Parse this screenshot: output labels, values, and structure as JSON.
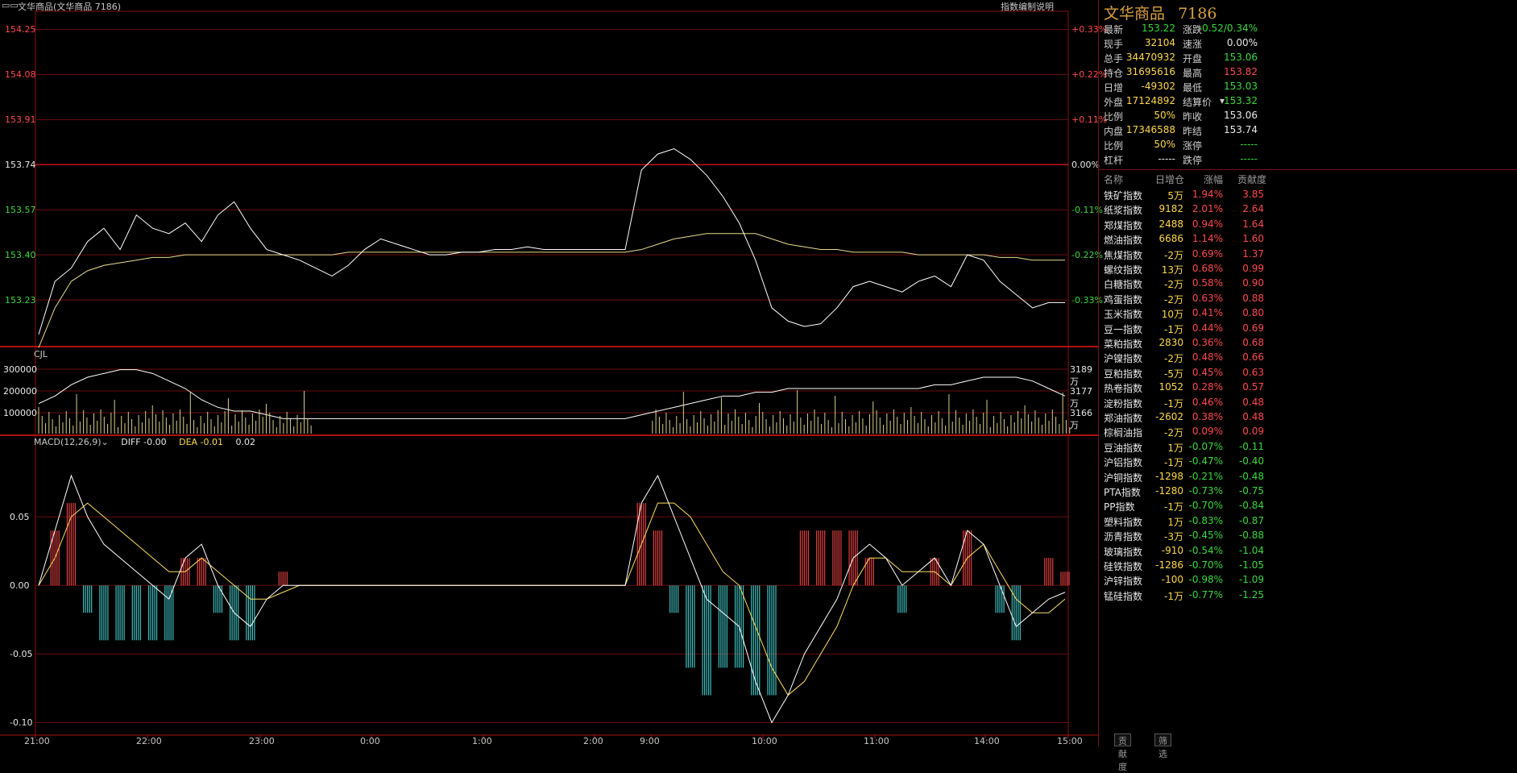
{
  "window": {
    "title": "文华商品(文华商品  7186)",
    "link": "指数编制说明"
  },
  "price_axis": {
    "left_labels": [
      "154.25",
      "154.08",
      "153.91",
      "153.74",
      "153.57",
      "153.40",
      "153.23"
    ],
    "right_labels": [
      "+0.33%",
      "+0.22%",
      "+0.11%",
      "0.00%",
      "-0.11%",
      "-0.22%",
      "-0.33%"
    ]
  },
  "volume_panel": {
    "label": "CJL",
    "left_labels": [
      "300000",
      "200000",
      "100000"
    ],
    "right_labels": [
      "3189万",
      "3177万",
      "3166万"
    ]
  },
  "macd_panel": {
    "label": "MACD(12,26,9)",
    "diff": "DIFF -0.00",
    "dea": "DEA -0.01",
    "macd": "0.02",
    "left_labels": [
      "0.05",
      "0.00",
      "-0.05",
      "-0.10"
    ]
  },
  "time_axis": [
    "21:00",
    "22:00",
    "23:00",
    "0:00",
    "1:00",
    "2:00",
    "9:00",
    "10:00",
    "11:00",
    "14:00",
    "15:00"
  ],
  "quote": {
    "name": "文华商品",
    "code": "7186",
    "rows": [
      {
        "l1": "最新",
        "v1": "153.22",
        "c1": "#3ad83a",
        "l2": "涨跌",
        "v2": "-0.52/0.34%",
        "c2": "#3ad83a"
      },
      {
        "l1": "现手",
        "v1": "32104",
        "c1": "#ffd84a",
        "l2": "速涨",
        "v2": "0.00%",
        "c2": "#e8e8e8"
      },
      {
        "l1": "总手",
        "v1": "34470932",
        "c1": "#ffd84a",
        "l2": "开盘",
        "v2": "153.06",
        "c2": "#3ad83a"
      },
      {
        "l1": "持仓",
        "v1": "31695616",
        "c1": "#ffd84a",
        "l2": "最高",
        "v2": "153.82",
        "c2": "#ff4a4a"
      },
      {
        "l1": "日增",
        "v1": "-49302",
        "c1": "#ffd84a",
        "l2": "最低",
        "v2": "153.03",
        "c2": "#3ad83a"
      },
      {
        "l1": "外盘",
        "v1": "17124892",
        "c1": "#ffd84a",
        "l2": "结算价",
        "v2": "153.32",
        "c2": "#3ad83a"
      },
      {
        "l1": "比例",
        "v1": "50%",
        "c1": "#ffd84a",
        "l2": "昨收",
        "v2": "153.06",
        "c2": "#e8e8e8"
      },
      {
        "l1": "内盘",
        "v1": "17346588",
        "c1": "#ffd84a",
        "l2": "昨结",
        "v2": "153.74",
        "c2": "#e8e8e8"
      },
      {
        "l1": "比例",
        "v1": "50%",
        "c1": "#ffd84a",
        "l2": "涨停",
        "v2": "-----",
        "c2": "#3ad83a"
      },
      {
        "l1": "杠杆",
        "v1": "-----",
        "c1": "#e8e8e8",
        "l2": "跌停",
        "v2": "-----",
        "c2": "#3ad83a"
      }
    ]
  },
  "components": {
    "headers": [
      "名称",
      "日增仓",
      "涨幅",
      "贡献度"
    ],
    "rows": [
      {
        "name": "铁矿指数",
        "oi": "5万",
        "chg": "1.94%",
        "contrib": "3.85",
        "up": true
      },
      {
        "name": "纸浆指数",
        "oi": "9182",
        "chg": "2.01%",
        "contrib": "2.64",
        "up": true
      },
      {
        "name": "郑煤指数",
        "oi": "2488",
        "chg": "0.94%",
        "contrib": "1.64",
        "up": true
      },
      {
        "name": "燃油指数",
        "oi": "6686",
        "chg": "1.14%",
        "contrib": "1.60",
        "up": true
      },
      {
        "name": "焦煤指数",
        "oi": "-2万",
        "chg": "0.69%",
        "contrib": "1.37",
        "up": true
      },
      {
        "name": "螺纹指数",
        "oi": "13万",
        "chg": "0.68%",
        "contrib": "0.99",
        "up": true
      },
      {
        "name": "白糖指数",
        "oi": "-2万",
        "chg": "0.58%",
        "contrib": "0.90",
        "up": true
      },
      {
        "name": "鸡蛋指数",
        "oi": "-2万",
        "chg": "0.63%",
        "contrib": "0.88",
        "up": true
      },
      {
        "name": "玉米指数",
        "oi": "10万",
        "chg": "0.41%",
        "contrib": "0.80",
        "up": true
      },
      {
        "name": "豆一指数",
        "oi": "-1万",
        "chg": "0.44%",
        "contrib": "0.69",
        "up": true
      },
      {
        "name": "菜粕指数",
        "oi": "2830",
        "chg": "0.36%",
        "contrib": "0.68",
        "up": true
      },
      {
        "name": "沪镍指数",
        "oi": "-2万",
        "chg": "0.48%",
        "contrib": "0.66",
        "up": true
      },
      {
        "name": "豆粕指数",
        "oi": "-5万",
        "chg": "0.45%",
        "contrib": "0.63",
        "up": true
      },
      {
        "name": "热卷指数",
        "oi": "1052",
        "chg": "0.28%",
        "contrib": "0.57",
        "up": true
      },
      {
        "name": "淀粉指数",
        "oi": "-1万",
        "chg": "0.46%",
        "contrib": "0.48",
        "up": true
      },
      {
        "name": "郑油指数",
        "oi": "-2602",
        "chg": "0.38%",
        "contrib": "0.48",
        "up": true
      },
      {
        "name": "棕榈油指",
        "oi": "-2万",
        "chg": "0.09%",
        "contrib": "0.09",
        "up": true
      },
      {
        "name": "豆油指数",
        "oi": "1万",
        "chg": "-0.07%",
        "contrib": "-0.11",
        "up": false
      },
      {
        "name": "沪铝指数",
        "oi": "-1万",
        "chg": "-0.47%",
        "contrib": "-0.40",
        "up": false
      },
      {
        "name": "沪铜指数",
        "oi": "-1298",
        "chg": "-0.21%",
        "contrib": "-0.48",
        "up": false
      },
      {
        "name": "PTA指数",
        "oi": "-1280",
        "chg": "-0.73%",
        "contrib": "-0.75",
        "up": false
      },
      {
        "name": "PP指数",
        "oi": "-1万",
        "chg": "-0.70%",
        "contrib": "-0.84",
        "up": false
      },
      {
        "name": "塑料指数",
        "oi": "1万",
        "chg": "-0.83%",
        "contrib": "-0.87",
        "up": false
      },
      {
        "name": "沥青指数",
        "oi": "-3万",
        "chg": "-0.45%",
        "contrib": "-0.88",
        "up": false
      },
      {
        "name": "玻璃指数",
        "oi": "-910",
        "chg": "-0.54%",
        "contrib": "-1.04",
        "up": false
      },
      {
        "name": "硅铁指数",
        "oi": "-1286",
        "chg": "-0.70%",
        "contrib": "-1.05",
        "up": false
      },
      {
        "name": "沪锌指数",
        "oi": "-100",
        "chg": "-0.98%",
        "contrib": "-1.09",
        "up": false
      },
      {
        "name": "锰硅指数",
        "oi": "-1万",
        "chg": "-0.77%",
        "contrib": "-1.25",
        "up": false
      }
    ]
  },
  "bottom_tabs": [
    "贡献度",
    "筛选"
  ],
  "chart_data": {
    "type": "line",
    "price_series": [
      153.1,
      153.3,
      153.35,
      153.45,
      153.5,
      153.42,
      153.55,
      153.5,
      153.48,
      153.52,
      153.45,
      153.55,
      153.6,
      153.5,
      153.42,
      153.4,
      153.38,
      153.35,
      153.32,
      153.36,
      153.42,
      153.46,
      153.44,
      153.42,
      153.4,
      153.4,
      153.41,
      153.41,
      153.42,
      153.42,
      153.43,
      153.42,
      153.42,
      153.42,
      153.42,
      153.42,
      153.42,
      153.72,
      153.78,
      153.8,
      153.76,
      153.7,
      153.62,
      153.52,
      153.38,
      153.2,
      153.15,
      153.13,
      153.14,
      153.2,
      153.28,
      153.3,
      153.28,
      153.26,
      153.3,
      153.32,
      153.28,
      153.4,
      153.38,
      153.3,
      153.25,
      153.2,
      153.22,
      153.22
    ],
    "avg_series": [
      153.05,
      153.2,
      153.3,
      153.34,
      153.36,
      153.37,
      153.38,
      153.39,
      153.39,
      153.4,
      153.4,
      153.4,
      153.4,
      153.4,
      153.4,
      153.4,
      153.4,
      153.4,
      153.4,
      153.41,
      153.41,
      153.41,
      153.41,
      153.41,
      153.41,
      153.41,
      153.41,
      153.41,
      153.41,
      153.41,
      153.41,
      153.41,
      153.41,
      153.41,
      153.41,
      153.41,
      153.41,
      153.42,
      153.44,
      153.46,
      153.47,
      153.48,
      153.48,
      153.48,
      153.48,
      153.46,
      153.44,
      153.43,
      153.42,
      153.42,
      153.41,
      153.41,
      153.41,
      153.41,
      153.4,
      153.4,
      153.4,
      153.4,
      153.4,
      153.39,
      153.39,
      153.38,
      153.38,
      153.38
    ],
    "volume_line": [
      3180,
      3182,
      3185,
      3187,
      3188,
      3189,
      3189,
      3188,
      3186,
      3184,
      3181,
      3179,
      3178,
      3178,
      3177,
      3176,
      3176,
      3176,
      3176,
      3176,
      3176,
      3176,
      3176,
      3176,
      3176,
      3176,
      3176,
      3176,
      3176,
      3176,
      3176,
      3176,
      3176,
      3176,
      3176,
      3176,
      3176,
      3177,
      3178,
      3179,
      3180,
      3181,
      3182,
      3182,
      3183,
      3183,
      3184,
      3184,
      3184,
      3184,
      3184,
      3184,
      3184,
      3184,
      3184,
      3185,
      3185,
      3186,
      3187,
      3187,
      3187,
      3186,
      3184,
      3182
    ],
    "diff_series": [
      0.0,
      0.04,
      0.08,
      0.05,
      0.03,
      0.02,
      0.01,
      0.0,
      -0.01,
      0.02,
      0.03,
      0.0,
      -0.02,
      -0.03,
      -0.01,
      0.0,
      0.0,
      0.0,
      0.0,
      0.0,
      0.0,
      0.0,
      0.0,
      0.0,
      0.0,
      0.0,
      0.0,
      0.0,
      0.0,
      0.0,
      0.0,
      0.0,
      0.0,
      0.0,
      0.0,
      0.0,
      0.0,
      0.06,
      0.08,
      0.05,
      0.02,
      -0.01,
      -0.02,
      -0.03,
      -0.07,
      -0.1,
      -0.08,
      -0.05,
      -0.03,
      -0.01,
      0.02,
      0.03,
      0.02,
      0.0,
      0.01,
      0.02,
      0.0,
      0.04,
      0.03,
      0.0,
      -0.03,
      -0.02,
      -0.01,
      -0.005
    ],
    "dea_series": [
      0.0,
      0.02,
      0.05,
      0.06,
      0.05,
      0.04,
      0.03,
      0.02,
      0.01,
      0.01,
      0.02,
      0.01,
      0.0,
      -0.01,
      -0.01,
      -0.005,
      0.0,
      0.0,
      0.0,
      0.0,
      0.0,
      0.0,
      0.0,
      0.0,
      0.0,
      0.0,
      0.0,
      0.0,
      0.0,
      0.0,
      0.0,
      0.0,
      0.0,
      0.0,
      0.0,
      0.0,
      0.0,
      0.03,
      0.06,
      0.06,
      0.05,
      0.03,
      0.01,
      0.0,
      -0.03,
      -0.06,
      -0.08,
      -0.07,
      -0.05,
      -0.03,
      0.0,
      0.02,
      0.02,
      0.01,
      0.01,
      0.01,
      0.0,
      0.02,
      0.03,
      0.01,
      -0.01,
      -0.02,
      -0.02,
      -0.01
    ],
    "ylim_price": [
      153.06,
      154.3
    ],
    "ylim_macd": [
      -0.105,
      0.1
    ]
  }
}
